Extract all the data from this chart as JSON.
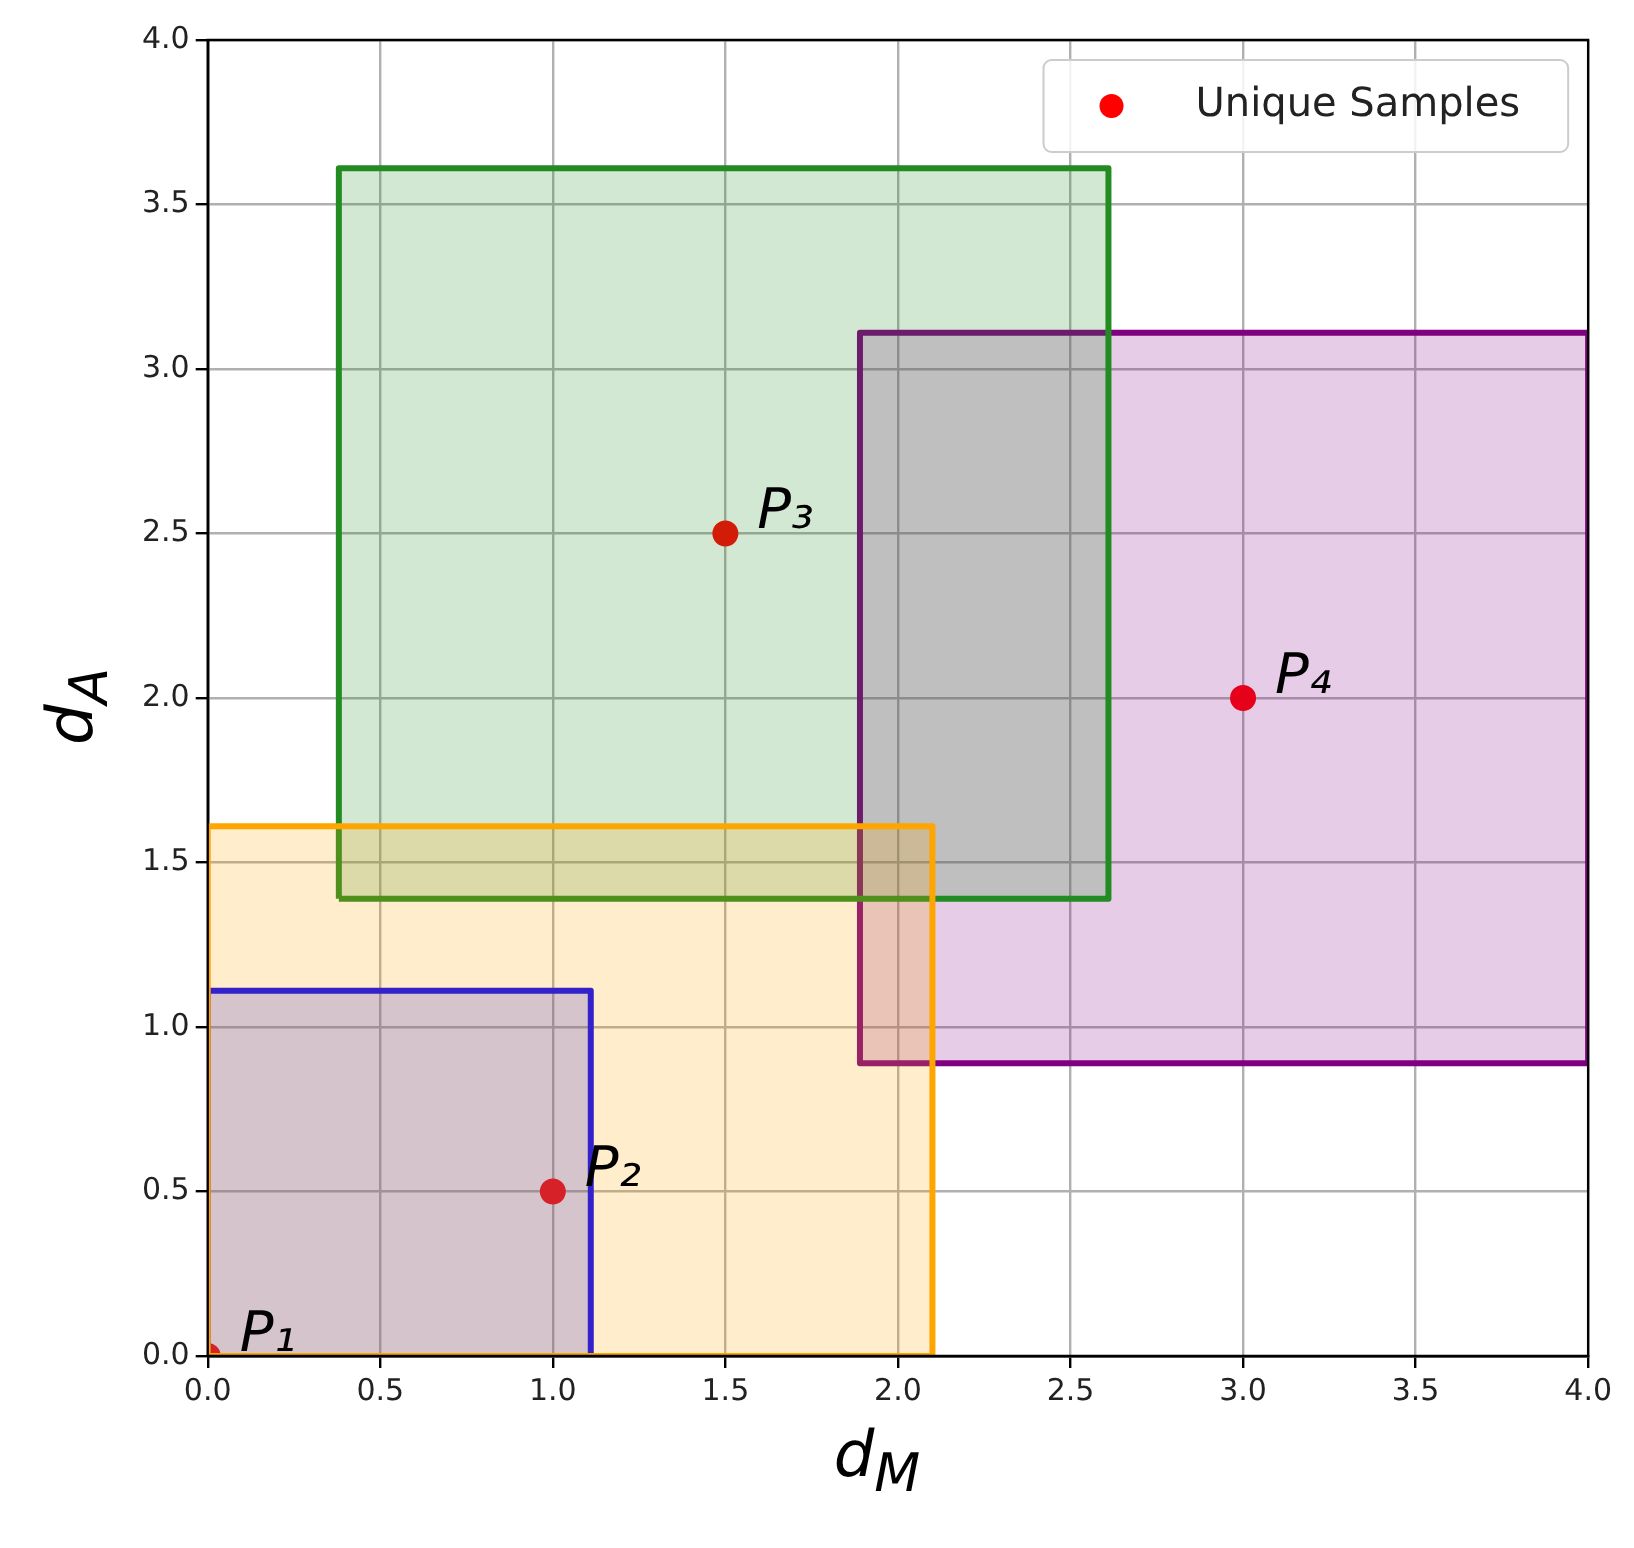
{
  "chart_data": {
    "type": "scatter",
    "xlabel": "d$_{M}$",
    "ylabel": "d$_{A}$",
    "xlim": [
      0,
      4
    ],
    "ylim": [
      0,
      4
    ],
    "xticks": [
      {
        "value": 0,
        "label": "0.0"
      },
      0.5,
      {
        "value": 1,
        "label": "1.0"
      },
      1.5,
      {
        "value": 2,
        "label": "2.0"
      },
      2.5,
      {
        "value": 3,
        "label": "3.0"
      },
      3.5,
      {
        "value": 4,
        "label": "4.0"
      }
    ],
    "yticks": [
      {
        "value": 0,
        "label": "0.0"
      },
      0.5,
      {
        "value": 1,
        "label": "1.0"
      },
      1.5,
      {
        "value": 2,
        "label": "2.0"
      },
      2.5,
      {
        "value": 3,
        "label": "3.0"
      },
      3.5,
      {
        "value": 4,
        "label": "4.0"
      }
    ],
    "series": [
      {
        "type": "area",
        "color": "#ffa500",
        "x": [
          0,
          2.1,
          2.1,
          0,
          0
        ],
        "values": [
          1.61,
          1.61,
          0,
          0,
          1.61
        ]
      },
      {
        "type": "area",
        "color": "#0000ff",
        "x": [
          0,
          1.11,
          1.11,
          0,
          0
        ],
        "values": [
          1.11,
          1.11,
          0,
          0,
          1.11
        ]
      },
      {
        "type": "area",
        "color": "#228b22",
        "x": [
          0.38,
          0.38,
          2.61,
          2.61,
          0.38
        ],
        "values": [
          1.39,
          3.61,
          3.61,
          1.39,
          1.39
        ]
      },
      {
        "type": "area",
        "color": "#800080",
        "x": [
          4,
          1.89,
          1.89,
          4,
          4
        ],
        "values": [
          0.89,
          0.89,
          3.11,
          3.11,
          0.89
        ]
      },
      {
        "type": "scatter",
        "name": "Unique Samples",
        "color": "#ff0000",
        "marker": "circle",
        "x": [
          0,
          1,
          1.5,
          3
        ],
        "values": [
          0,
          0.5,
          2.5,
          2
        ]
      }
    ],
    "annotations": [
      {
        "text": "P₁",
        "x": 0,
        "y": 0
      },
      {
        "text": "P₂",
        "x": 1,
        "y": 0.5
      },
      {
        "text": "P₃",
        "x": 1.5,
        "y": 2.5
      },
      {
        "text": "P₄",
        "x": 3,
        "y": 2
      }
    ],
    "grid": true,
    "legend": "top right"
  }
}
